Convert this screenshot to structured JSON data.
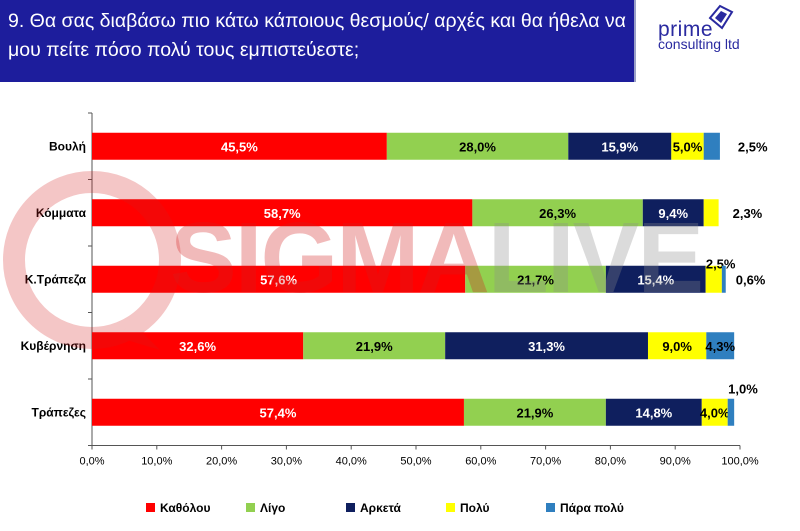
{
  "header": {
    "title": "9. Θα σας διαβάσω πιο κάτω κάποιους θεσμούς/ αρχές και θα ήθελα να μου πείτε πόσο πολύ τους εμπιστεύεστε;"
  },
  "logo": {
    "line1": "prime",
    "line2": "consulting ltd"
  },
  "watermark": {
    "part1": "SIGMA",
    "part2": "LIVE"
  },
  "colors": {
    "header_bg": "#1d1d9c",
    "series": [
      "#ff0000",
      "#92d050",
      "#0f1f5e",
      "#ffff00",
      "#2f7fbf"
    ]
  },
  "chart_data": {
    "type": "bar",
    "orientation": "horizontal",
    "stacked": true,
    "categories": [
      "Βουλή",
      "Κόμματα",
      "Κ.Τράπεζα",
      "Κυβέρνηση",
      "Τράπεζες"
    ],
    "series": [
      {
        "name": "Καθόλου",
        "values": [
          45.5,
          58.7,
          57.6,
          32.6,
          57.4
        ]
      },
      {
        "name": "Λίγο",
        "values": [
          28.0,
          26.3,
          21.7,
          21.9,
          21.9
        ]
      },
      {
        "name": "Αρκετά",
        "values": [
          15.9,
          9.4,
          15.4,
          31.3,
          14.8
        ]
      },
      {
        "name": "Πολύ",
        "values": [
          5.0,
          2.3,
          2.5,
          9.0,
          4.0
        ]
      },
      {
        "name": "Πάρα πολύ",
        "values": [
          2.5,
          0,
          0.6,
          4.3,
          1.0
        ]
      }
    ],
    "value_labels": [
      [
        "45,5%",
        "28,0%",
        "15,9%",
        "5,0%",
        "2,5%"
      ],
      [
        "58,7%",
        "26,3%",
        "9,4%",
        "2,3%",
        ""
      ],
      [
        "57,6%",
        "21,7%",
        "15,4%",
        "2,5%",
        "0,6%"
      ],
      [
        "32,6%",
        "21,9%",
        "31,3%",
        "9,0%",
        "4,3%"
      ],
      [
        "57,4%",
        "21,9%",
        "14,8%",
        "4,0%",
        "1,0%"
      ]
    ],
    "xlim": [
      0,
      100
    ],
    "xticks": [
      "0,0%",
      "10,0%",
      "20,0%",
      "30,0%",
      "40,0%",
      "50,0%",
      "60,0%",
      "70,0%",
      "80,0%",
      "90,0%",
      "100,0%"
    ],
    "legend_position": "bottom",
    "grid": false
  }
}
